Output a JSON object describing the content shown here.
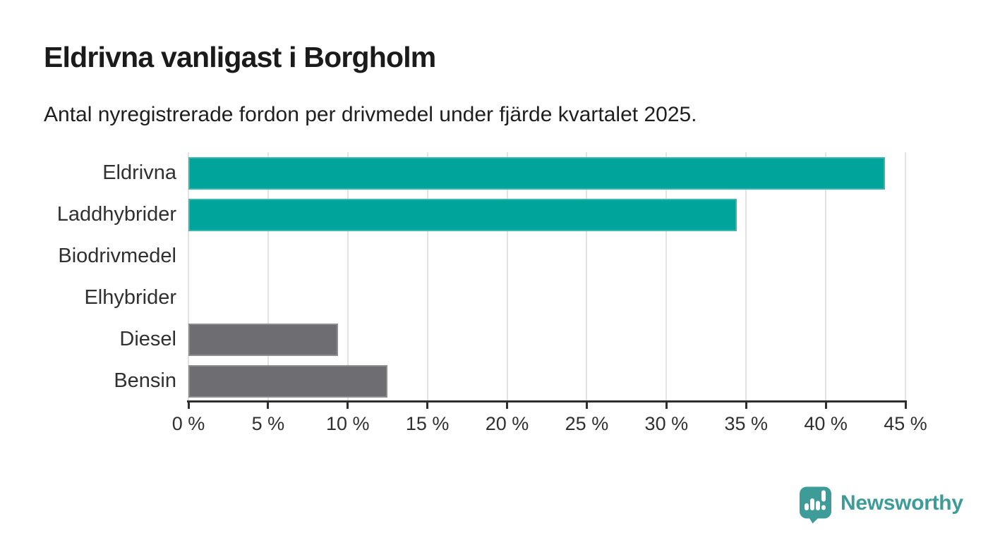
{
  "header": {
    "title": "Eldrivna vanligast i Borgholm",
    "subtitle": "Antal nyregistrerade fordon per drivmedel under fjärde kvartalet 2025."
  },
  "chart_data": {
    "type": "bar",
    "orientation": "horizontal",
    "title": "Eldrivna vanligast i Borgholm",
    "subtitle": "Antal nyregistrerade fordon per drivmedel under fjärde kvartalet 2025.",
    "categories": [
      "Eldrivna",
      "Laddhybrider",
      "Biodrivmedel",
      "Elhybrider",
      "Diesel",
      "Bensin"
    ],
    "values": [
      43.7,
      34.4,
      0,
      0,
      9.4,
      12.5
    ],
    "unit": "%",
    "bar_colors": [
      "#00A49B",
      "#00A49B",
      "#00A49B",
      "#00A49B",
      "#6E6D72",
      "#6E6D72"
    ],
    "xlim": [
      0,
      45
    ],
    "x_ticks": [
      0,
      5,
      10,
      15,
      20,
      25,
      30,
      35,
      40,
      45
    ],
    "x_tick_labels": [
      "0 %",
      "5 %",
      "10 %",
      "15 %",
      "20 %",
      "25 %",
      "30 %",
      "35 %",
      "40 %",
      "45 %"
    ],
    "grid": "vertical",
    "legend": "none",
    "xlabel": "",
    "ylabel": ""
  },
  "footer": {
    "brand": "Newsworthy"
  },
  "colors": {
    "accent_teal": "#00A49B",
    "neutral_gray": "#6E6D72",
    "logo_teal": "#3E9C98",
    "gridline": "#E3E3E3",
    "axis": "#2E2E2E",
    "text": "#1B1B1B"
  }
}
